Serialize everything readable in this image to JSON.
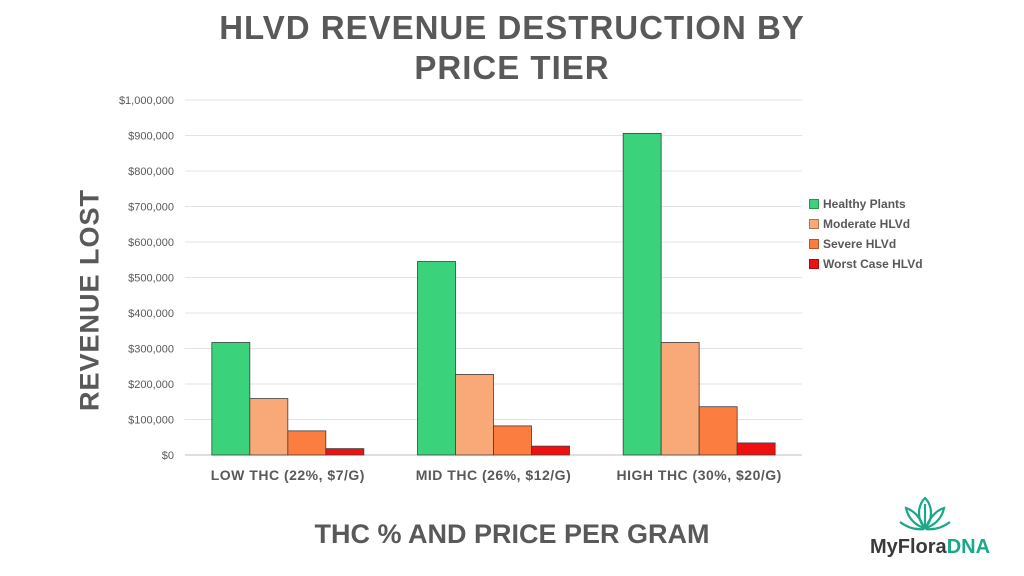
{
  "chart_data": {
    "type": "bar",
    "title": "HLVD REVENUE DESTRUCTION BY PRICE TIER",
    "title_lines": [
      "HLVD REVENUE DESTRUCTION BY",
      "PRICE TIER"
    ],
    "xlabel": "THC % AND PRICE PER GRAM",
    "ylabel": "REVENUE LOST",
    "categories": [
      "LOW THC (22%, $7/G)",
      "MID THC (26%, $12/G)",
      "HIGH THC (30%, $20/G)"
    ],
    "series": [
      {
        "name": "Healthy Plants",
        "color": "#3ad27a",
        "values": [
          317000,
          545000,
          906000
        ]
      },
      {
        "name": "Moderate HLVd",
        "color": "#f9a877",
        "values": [
          159000,
          227000,
          317000
        ]
      },
      {
        "name": "Severe HLVd",
        "color": "#fb7d3f",
        "values": [
          68000,
          82000,
          136000
        ]
      },
      {
        "name": "Worst Case HLVd",
        "color": "#f01010",
        "values": [
          18000,
          25000,
          34000
        ]
      }
    ],
    "ylim": [
      0,
      1000000
    ],
    "yticks": [
      "$0",
      "$100,000",
      "$200,000",
      "$300,000",
      "$400,000",
      "$500,000",
      "$600,000",
      "$700,000",
      "$800,000",
      "$900,000",
      "$1,000,000"
    ],
    "grid": true,
    "legend_position": "right"
  },
  "logo": {
    "text_part1": "MyFlora",
    "text_part2": "DNA"
  }
}
